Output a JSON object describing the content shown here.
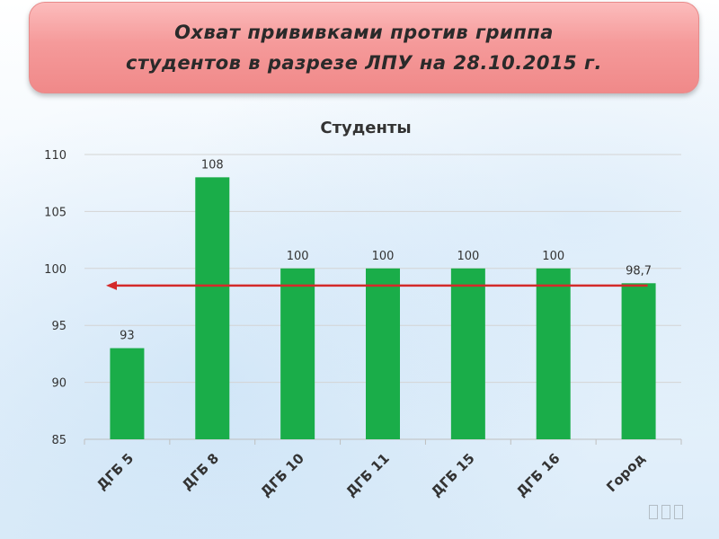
{
  "header": {
    "title_line1": "Охват прививками против гриппа",
    "title_line2": "студентов в разрезе ЛПУ на 28.10.2015 г."
  },
  "colors": {
    "bar": "#1aad49",
    "avg_arrow": "#d42a2a",
    "grid": "#d4d4d4",
    "title_box": "#f59a9a"
  },
  "chart_data": {
    "type": "bar",
    "title": "Студенты",
    "categories": [
      "ДГБ 5",
      "ДГБ 8",
      "ДГБ 10",
      "ДГБ 11",
      "ДГБ 15",
      "ДГБ 16",
      "Город"
    ],
    "values": [
      93,
      108,
      100,
      100,
      100,
      100,
      98.7
    ],
    "data_labels": [
      "93",
      "108",
      "100",
      "100",
      "100",
      "100",
      "98,7"
    ],
    "yticks": [
      85,
      90,
      95,
      100,
      105,
      110
    ],
    "ylim": [
      85,
      110
    ],
    "grid": true,
    "reference_line": {
      "value": 98.5,
      "style": "arrow",
      "direction": "left"
    }
  }
}
